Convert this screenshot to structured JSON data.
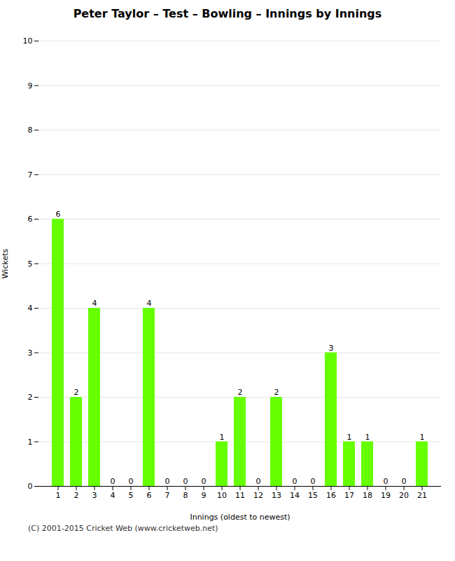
{
  "chart_data": {
    "type": "bar",
    "title": "Peter Taylor – Test – Bowling – Innings by Innings",
    "xlabel": "Innings (oldest to newest)",
    "ylabel": "Wickets",
    "footer": "(C) 2001-2015 Cricket Web (www.cricketweb.net)",
    "categories": [
      "1",
      "2",
      "3",
      "4",
      "5",
      "6",
      "7",
      "8",
      "9",
      "10",
      "11",
      "12",
      "13",
      "14",
      "15",
      "16",
      "17",
      "18",
      "19",
      "20",
      "21"
    ],
    "values": [
      6,
      2,
      4,
      0,
      0,
      4,
      0,
      0,
      0,
      1,
      2,
      0,
      2,
      0,
      0,
      3,
      1,
      1,
      0,
      0,
      1
    ],
    "color": "#66ff00",
    "ylim": [
      0,
      10
    ],
    "yticks": [
      0,
      1,
      2,
      3,
      4,
      5,
      6,
      7,
      8,
      9,
      10
    ],
    "grid": true,
    "data_labels": true
  }
}
